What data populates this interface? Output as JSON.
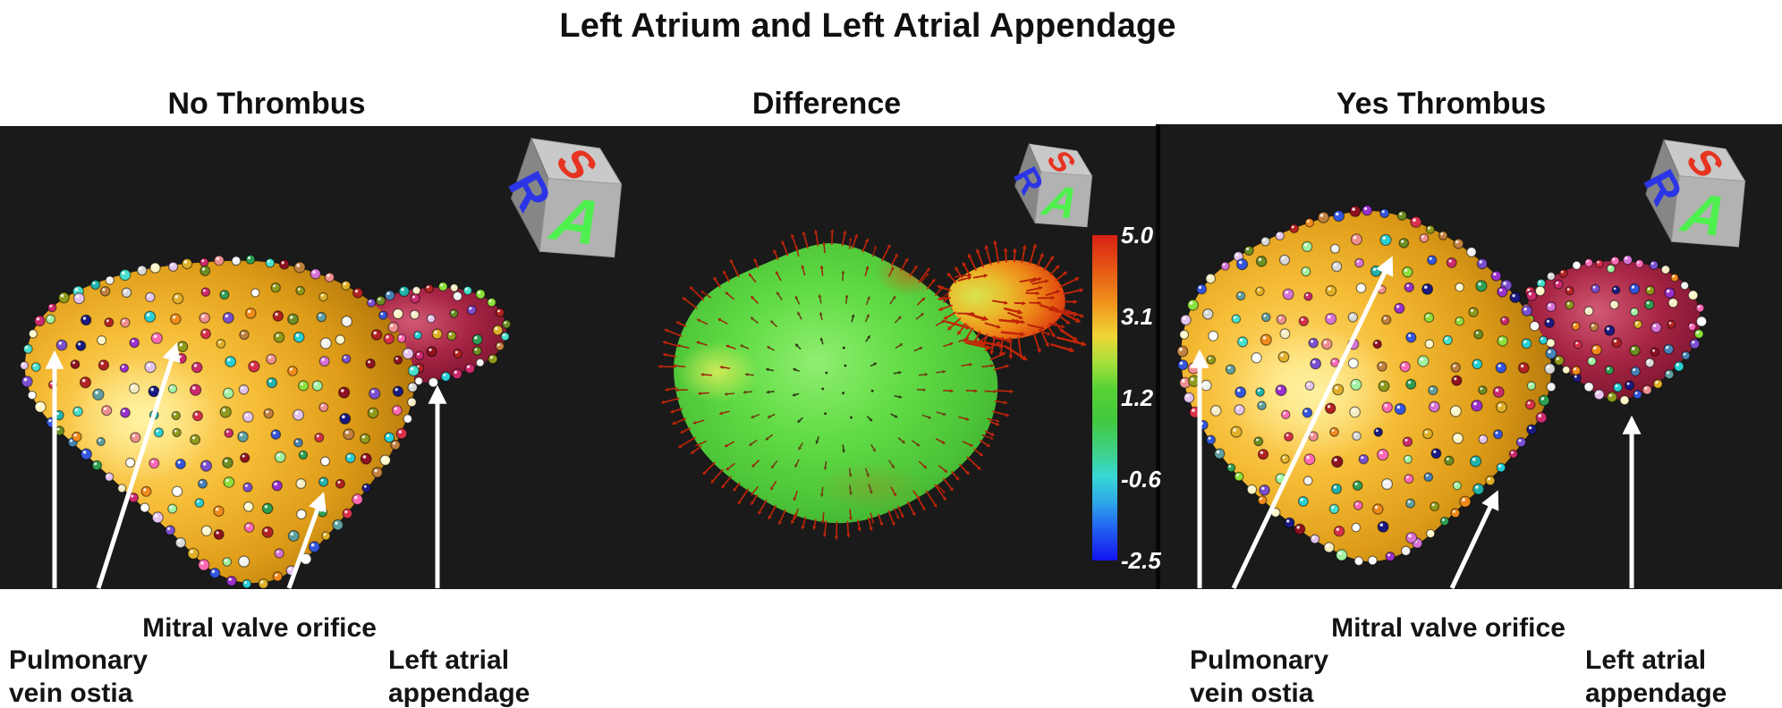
{
  "figure_title": "Left Atrium and Left Atrial Appendage",
  "columns": [
    {
      "label": "No Thrombus"
    },
    {
      "label": "Difference"
    },
    {
      "label": "Yes Thrombus"
    }
  ],
  "annotations": {
    "mitral_valve": "Mitral valve orifice",
    "pulmonary_vein_line1": "Pulmonary",
    "pulmonary_vein_line2": "vein ostia",
    "appendage_line1": "Left atrial",
    "appendage_line2": "appendage"
  },
  "orientation_cube": {
    "top_letter": "S",
    "top_color": "#e63420",
    "left_letter": "R",
    "left_color": "#2b35e6",
    "front_letter": "A",
    "front_color": "#4ef04e"
  },
  "colorbar": {
    "tick_labels": [
      "5.0",
      "3.1",
      "1.2",
      "-0.6",
      "-2.5"
    ],
    "max": 5.0,
    "min": -2.5
  },
  "colors": {
    "panel_background": "#1a1a1a",
    "atrium_gold_highlight": "#ffe27c",
    "atrium_gold_edge": "#8f5e06",
    "appendage_maroon_mid": "#a82545",
    "difference_green_mid": "#57d73c",
    "difference_arrow_red": "#c32508",
    "annotation_arrow_white": "#ffffff",
    "cube_top_face": "#c9c9c9",
    "cube_left_face": "#868686",
    "cube_front_face": "#b2b2b2",
    "sphere_palette": [
      "#f2f2f2",
      "#f7edc4",
      "#e0b02a",
      "#8e1220",
      "#cc2a6e",
      "#28cfd4",
      "#2e9e52",
      "#3456dd",
      "#1a1a80",
      "#f08a1a",
      "#9a30cc",
      "#d8304a",
      "#8ee03c",
      "#48e0cc",
      "#ef8f8f",
      "#fff8c8",
      "#8f9a1c",
      "#b22222",
      "#5f9ea0",
      "#d873d6",
      "#c08040",
      "#4682b4",
      "#a2f2a2",
      "#e4c4ee",
      "#ffffff",
      "#d8d8d8",
      "#7a4fd0",
      "#20b2aa",
      "#ff69b4",
      "#6b8e23"
    ]
  }
}
